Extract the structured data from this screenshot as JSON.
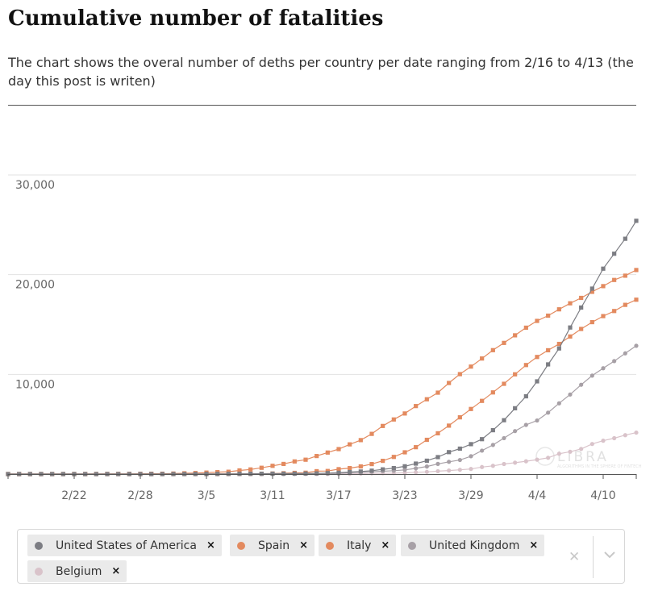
{
  "title": "Cumulative number of fatalities",
  "subtitle": "The chart shows the overal number of deths per country per date ranging from 2/16 to 4/13 (the day this post is writen)",
  "watermark": {
    "brand": "LIBRA",
    "tagline": "ALGORITHMS IN THE SPHERE OF FINTECH"
  },
  "chart_data": {
    "type": "line",
    "title": "Cumulative number of fatalities",
    "x": [
      "2/16",
      "2/17",
      "2/18",
      "2/19",
      "2/20",
      "2/21",
      "2/22",
      "2/23",
      "2/24",
      "2/25",
      "2/26",
      "2/27",
      "2/28",
      "2/29",
      "3/1",
      "3/2",
      "3/3",
      "3/4",
      "3/5",
      "3/6",
      "3/7",
      "3/8",
      "3/9",
      "3/10",
      "3/11",
      "3/12",
      "3/13",
      "3/14",
      "3/15",
      "3/16",
      "3/17",
      "3/18",
      "3/19",
      "3/20",
      "3/21",
      "3/22",
      "3/23",
      "3/24",
      "3/25",
      "3/26",
      "3/27",
      "3/28",
      "3/29",
      "3/30",
      "3/31",
      "4/1",
      "4/2",
      "4/3",
      "4/4",
      "4/5",
      "4/6",
      "4/7",
      "4/8",
      "4/9",
      "4/10",
      "4/11",
      "4/12",
      "4/13"
    ],
    "x_tick_labels": [
      "2/22",
      "2/28",
      "3/5",
      "3/11",
      "3/17",
      "3/23",
      "3/29",
      "4/4",
      "4/10"
    ],
    "y_tick_labels": [
      "10,000",
      "20,000",
      "30,000"
    ],
    "ylim": [
      0,
      30000
    ],
    "y_ticks": [
      10000,
      20000,
      30000
    ],
    "grid": true,
    "legend": "bottom",
    "series": [
      {
        "name": "United States of America",
        "color": "#7c7d83",
        "marker": "square",
        "values": [
          0,
          0,
          0,
          0,
          0,
          0,
          0,
          0,
          0,
          1,
          1,
          1,
          1,
          1,
          2,
          6,
          9,
          11,
          12,
          15,
          19,
          22,
          26,
          30,
          38,
          41,
          48,
          57,
          68,
          100,
          130,
          200,
          255,
          340,
          470,
          600,
          780,
          1050,
          1340,
          1700,
          2200,
          2550,
          3000,
          3500,
          4400,
          5400,
          6600,
          7800,
          9300,
          11000,
          12600,
          14700,
          16700,
          18600,
          20600,
          22100,
          23600,
          25400
        ]
      },
      {
        "name": "Spain",
        "color": "#e38a5f",
        "marker": "square",
        "values": [
          0,
          0,
          0,
          0,
          0,
          0,
          0,
          0,
          0,
          0,
          0,
          0,
          0,
          0,
          0,
          0,
          1,
          2,
          3,
          5,
          10,
          17,
          28,
          35,
          55,
          84,
          121,
          136,
          288,
          309,
          491,
          598,
          767,
          1002,
          1326,
          1720,
          2182,
          2696,
          3434,
          4089,
          4858,
          5690,
          6528,
          7340,
          8189,
          9053,
          10003,
          10935,
          11744,
          12418,
          13055,
          13798,
          14555,
          15238,
          15843,
          16353,
          16972,
          17489
        ]
      },
      {
        "name": "Italy",
        "color": "#e38a5f",
        "marker": "square",
        "values": [
          0,
          0,
          0,
          0,
          0,
          1,
          2,
          3,
          7,
          10,
          12,
          17,
          21,
          29,
          34,
          52,
          79,
          107,
          148,
          197,
          233,
          366,
          463,
          631,
          827,
          1016,
          1266,
          1441,
          1809,
          2158,
          2503,
          2978,
          3405,
          4032,
          4825,
          5476,
          6077,
          6820,
          7503,
          8165,
          9134,
          10023,
          10779,
          11591,
          12428,
          13155,
          13915,
          14681,
          15362,
          15887,
          16523,
          17127,
          17669,
          18279,
          18849,
          19468,
          19899,
          20465
        ]
      },
      {
        "name": "United Kingdom",
        "color": "#a7a0a6",
        "marker": "circle",
        "values": [
          0,
          0,
          0,
          0,
          0,
          0,
          0,
          0,
          0,
          0,
          0,
          0,
          0,
          0,
          0,
          0,
          0,
          0,
          1,
          2,
          3,
          4,
          6,
          8,
          8,
          10,
          21,
          35,
          56,
          56,
          72,
          138,
          178,
          234,
          282,
          336,
          423,
          577,
          759,
          1019,
          1228,
          1411,
          1789,
          2352,
          2921,
          3605,
          4313,
          4934,
          5373,
          6159,
          7097,
          7978,
          8958,
          9875,
          10612,
          11329,
          12107,
          12868
        ]
      },
      {
        "name": "Belgium",
        "color": "#d9c3ca",
        "marker": "circle",
        "values": [
          0,
          0,
          0,
          0,
          0,
          0,
          0,
          0,
          0,
          0,
          0,
          0,
          0,
          0,
          0,
          0,
          0,
          0,
          0,
          0,
          0,
          0,
          0,
          0,
          3,
          3,
          4,
          4,
          5,
          10,
          14,
          21,
          37,
          67,
          75,
          88,
          122,
          178,
          220,
          289,
          353,
          431,
          513,
          705,
          828,
          1011,
          1143,
          1283,
          1447,
          1632,
          2035,
          2240,
          2523,
          3019,
          3346,
          3600,
          3903,
          4157
        ]
      }
    ]
  },
  "picker": {
    "chips": [
      {
        "label": "United States of America",
        "color": "#7c7d83"
      },
      {
        "label": "Spain",
        "color": "#e38a5f"
      },
      {
        "label": "Italy",
        "color": "#e38a5f"
      },
      {
        "label": "United Kingdom",
        "color": "#a7a0a6"
      },
      {
        "label": "Belgium",
        "color": "#d9c3ca"
      }
    ],
    "remove_glyph": "×",
    "clear_glyph": "✕",
    "dropdown_icon": "chevron-down-icon"
  }
}
